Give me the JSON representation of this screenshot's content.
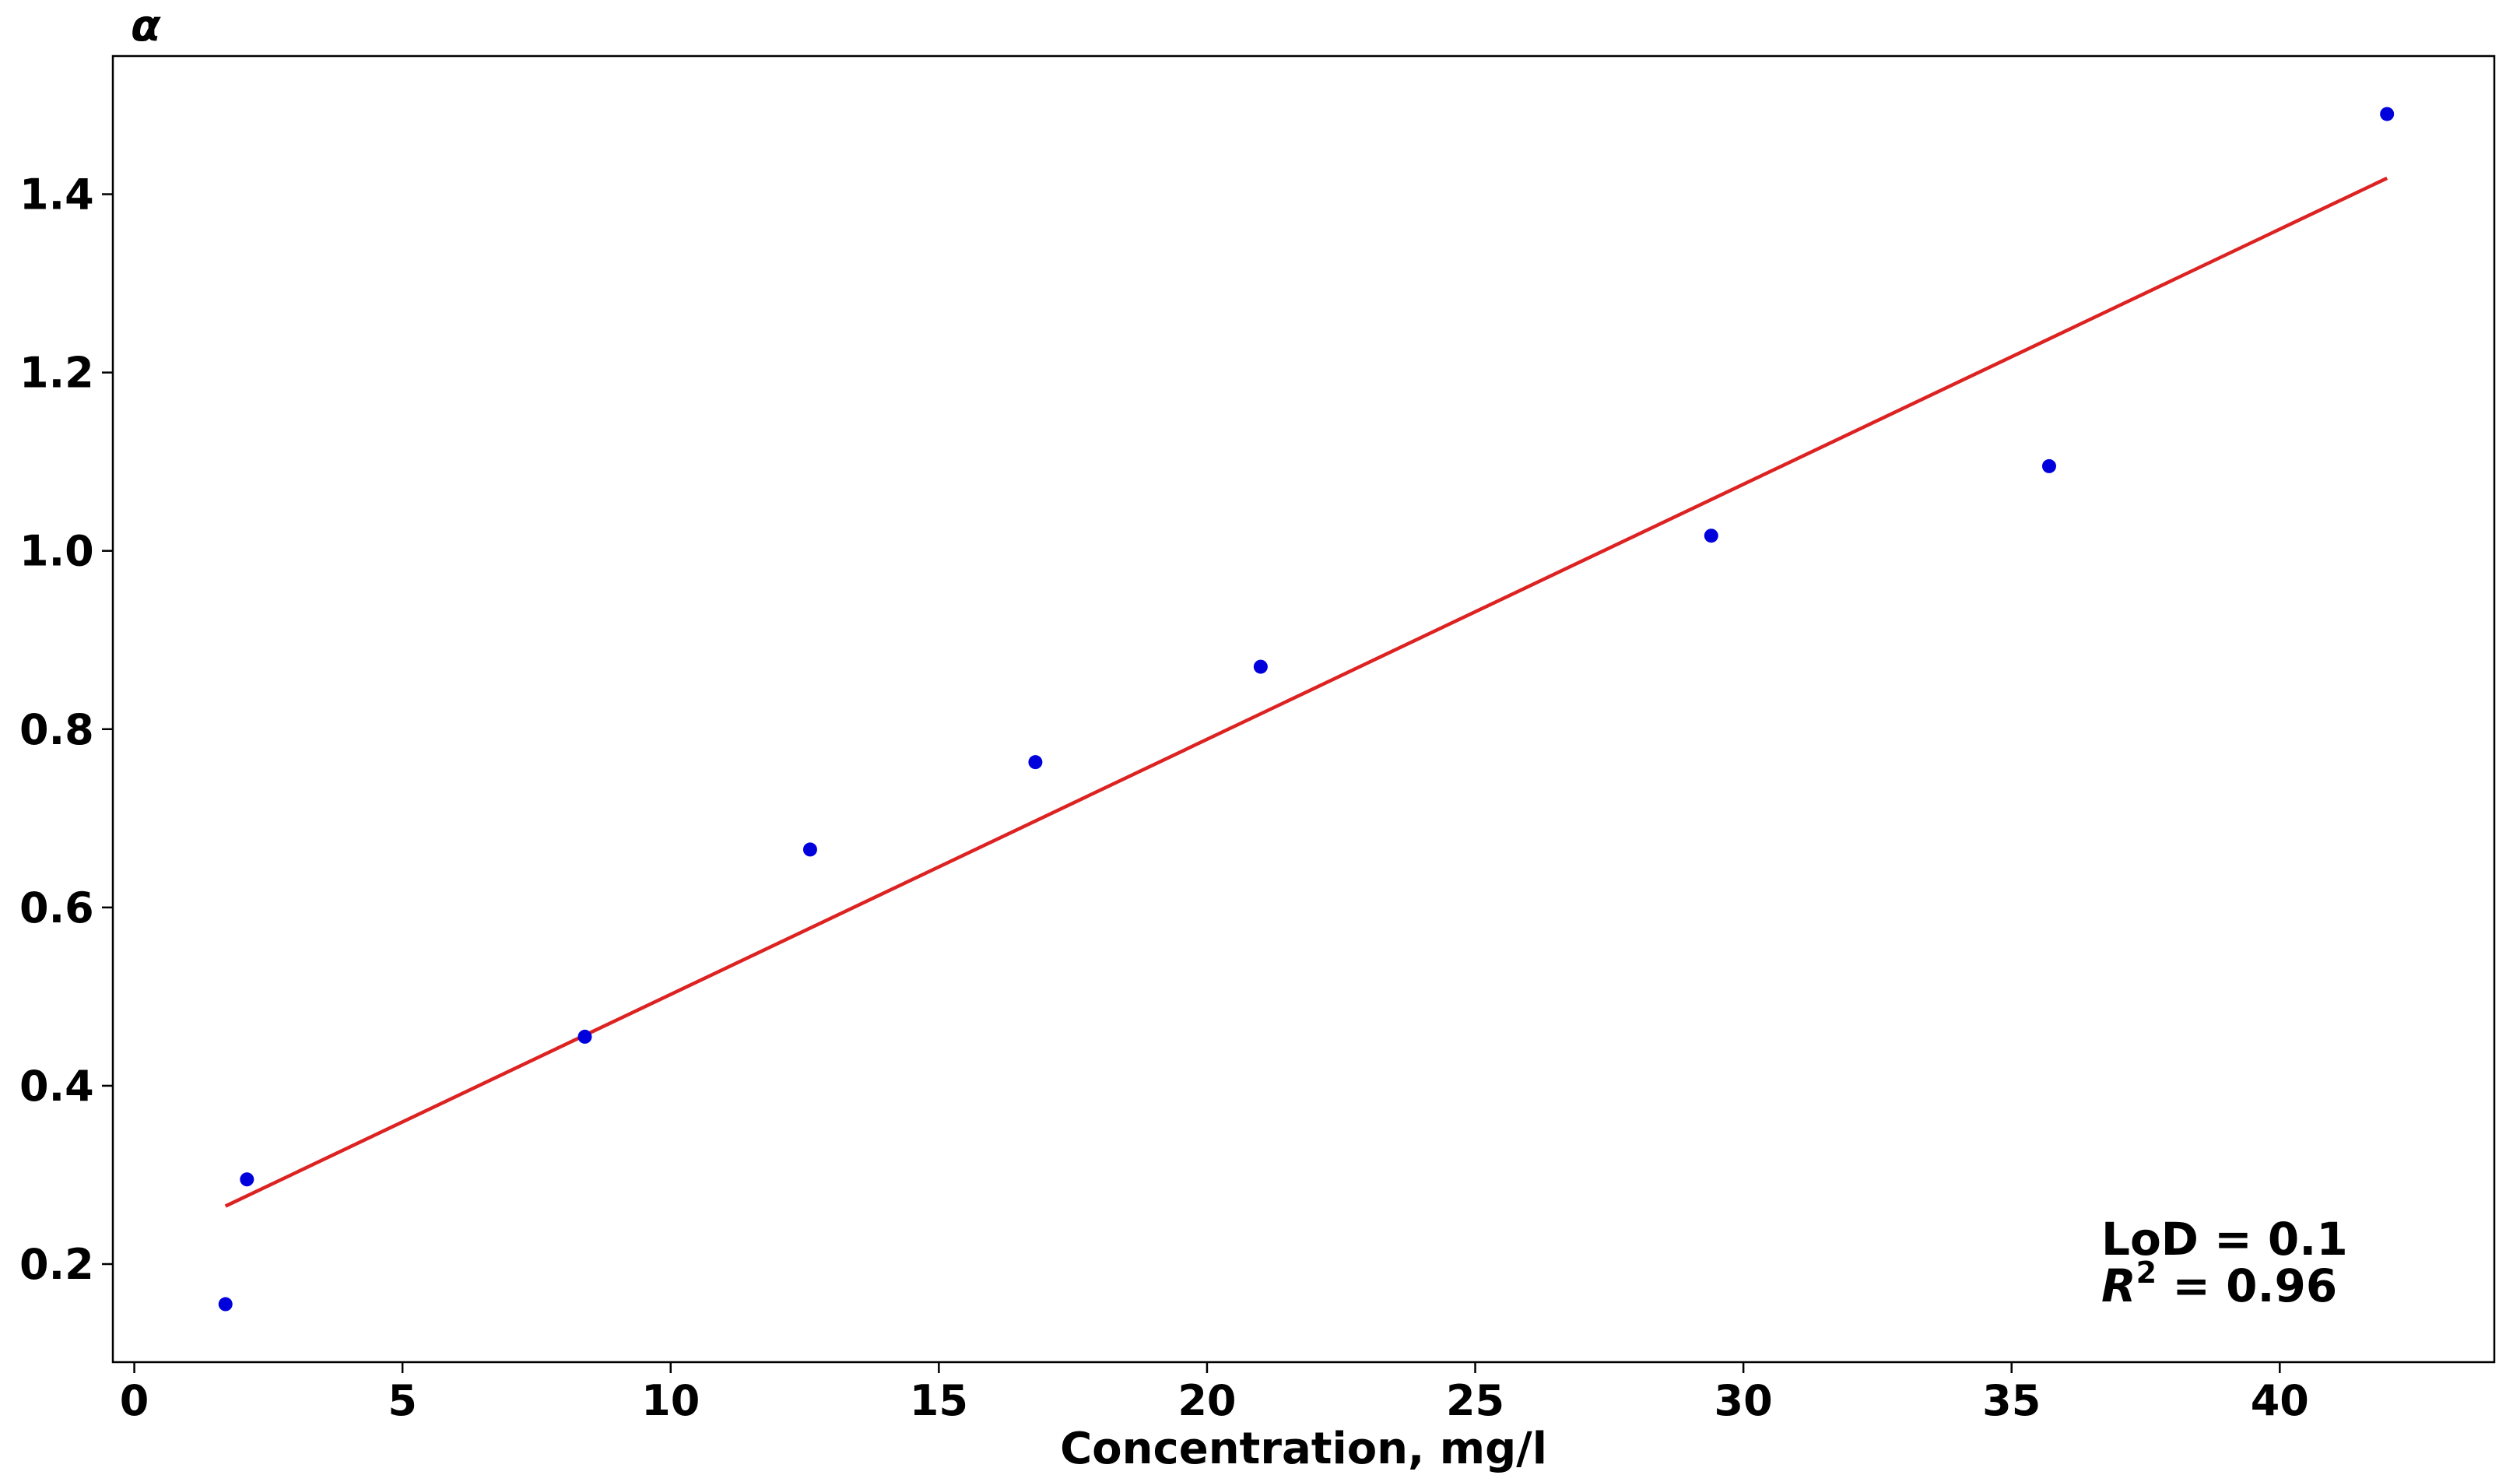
{
  "chart_data": {
    "type": "scatter",
    "xlabel": "Concentration, mg/l",
    "ylabel": "α",
    "xlim": [
      -0.4,
      44.0
    ],
    "ylim": [
      0.09,
      1.555
    ],
    "xticks": [
      0,
      5,
      10,
      15,
      20,
      25,
      30,
      35,
      40
    ],
    "yticks": [
      0.2,
      0.4,
      0.6,
      0.8,
      1.0,
      1.2,
      1.4
    ],
    "xtick_labels": [
      "0",
      "5",
      "10",
      "15",
      "20",
      "25",
      "30",
      "35",
      "40"
    ],
    "ytick_labels": [
      "0.2",
      "0.4",
      "0.6",
      "0.8",
      "1.0",
      "1.2",
      "1.4"
    ],
    "grid": false,
    "points": {
      "color": "#0000dd",
      "x": [
        1.7,
        2.1,
        8.4,
        12.6,
        16.8,
        21.0,
        29.4,
        35.7,
        42.0
      ],
      "y": [
        0.155,
        0.295,
        0.455,
        0.665,
        0.763,
        0.87,
        1.017,
        1.095,
        1.49
      ]
    },
    "fit_line": {
      "color": "#dd2222",
      "x": [
        1.7,
        42.0
      ],
      "y": [
        0.265,
        1.418
      ]
    },
    "annotations": {
      "lod": "LoD = 0.1",
      "r2_symbol": "R",
      "r2_exponent": "2",
      "r2_value": " = 0.96"
    }
  }
}
